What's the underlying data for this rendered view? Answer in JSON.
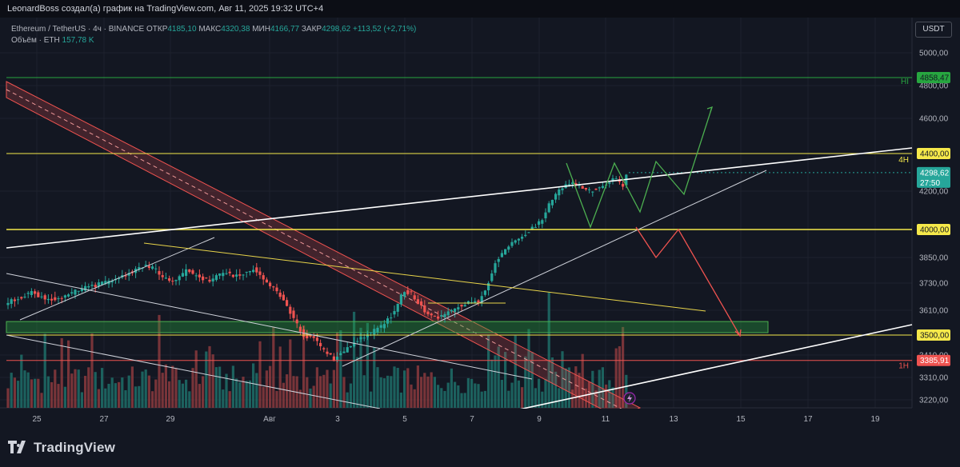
{
  "header": {
    "attribution": "LeonardBoss создал(а) график на TradingView.com, Авг 11, 2025 19:32 UTC+4"
  },
  "legend": {
    "symbol": "Ethereum / TetherUS · 4ч · BINANCE",
    "open_label": "ОТКР",
    "open": "4185,10",
    "high_label": "МАКС",
    "high": "4320,38",
    "low_label": "МИН",
    "low": "4166,77",
    "close_label": "ЗАКР",
    "close": "4298,62",
    "change": "+113,52 (+2,71%)",
    "volume_label": "Объём · ETH",
    "volume": "157,78 K"
  },
  "currency": "USDT",
  "footer": {
    "brand": "TradingView"
  },
  "colors": {
    "up": "#26a69a",
    "down": "#ef5350",
    "yellow": "#f5e84a",
    "green": "#27a640",
    "bg": "#131722"
  },
  "chart_data": {
    "type": "candlestick",
    "symbol": "Ethereum / TetherUS",
    "interval": "4ч",
    "exchange": "BINANCE",
    "x_ticks": [
      "25",
      "27",
      "29",
      "Авг",
      "3",
      "5",
      "7",
      "9",
      "11",
      "13",
      "15",
      "17",
      "19"
    ],
    "y_ticks": [
      "5000,00",
      "4800,00",
      "4600,00",
      "4200,00",
      "3850,00",
      "3730,00",
      "3610,00",
      "3410,00",
      "3310,00",
      "3220,00"
    ],
    "price_badges": [
      {
        "label": "4858,47",
        "price": 4858.47,
        "tag": "HI",
        "color": "#27a640"
      },
      {
        "label": "4400,00",
        "price": 4400,
        "tag": "4H",
        "color": "#f5e84a"
      },
      {
        "label": "4298,62",
        "price": 4298.62,
        "timer": "27:50",
        "color": "#26a69a"
      },
      {
        "label": "4000,00",
        "price": 4000,
        "color": "#f5e84a"
      },
      {
        "label": "3500,00",
        "price": 3500,
        "color": "#f5e84a"
      },
      {
        "label": "3385,91",
        "price": 3385.91,
        "tag": "1H",
        "color": "#ef5350"
      }
    ],
    "last": {
      "open": 4185.1,
      "high": 4320.38,
      "low": 4166.77,
      "close": 4298.62,
      "change": 113.52,
      "change_pct": 2.71
    },
    "volume_last": "157,78 K",
    "grid": true
  }
}
